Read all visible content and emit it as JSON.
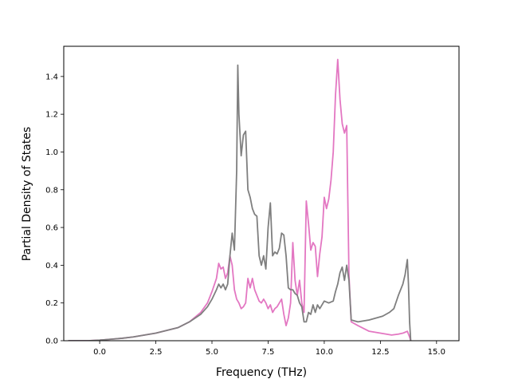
{
  "chart_data": {
    "type": "line",
    "title": "",
    "xlabel": "Frequency (THz)",
    "ylabel": "Partial Density of States",
    "xlim": [
      -1.6,
      16.0
    ],
    "ylim": [
      0.0,
      1.56
    ],
    "xticks": [
      0.0,
      2.5,
      5.0,
      7.5,
      10.0,
      12.5,
      15.0
    ],
    "xtick_labels": [
      "0.0",
      "2.5",
      "5.0",
      "7.5",
      "10.0",
      "12.5",
      "15.0"
    ],
    "yticks": [
      0.0,
      0.2,
      0.4,
      0.6,
      0.8,
      1.0,
      1.2,
      1.4
    ],
    "ytick_labels": [
      "0.0",
      "0.2",
      "0.4",
      "0.6",
      "0.8",
      "1.0",
      "1.2",
      "1.4"
    ],
    "grid": false,
    "legend": "none",
    "series": [
      {
        "color": "#e377c2",
        "x": [
          -1.4,
          -0.5,
          0.0,
          0.5,
          1.0,
          1.5,
          2.0,
          2.5,
          3.0,
          3.5,
          4.0,
          4.5,
          4.8,
          5.0,
          5.2,
          5.3,
          5.4,
          5.5,
          5.6,
          5.7,
          5.8,
          5.9,
          6.0,
          6.1,
          6.2,
          6.3,
          6.4,
          6.5,
          6.6,
          6.7,
          6.8,
          6.9,
          7.0,
          7.1,
          7.2,
          7.3,
          7.4,
          7.5,
          7.6,
          7.7,
          7.8,
          7.9,
          8.0,
          8.1,
          8.2,
          8.3,
          8.4,
          8.5,
          8.6,
          8.7,
          8.8,
          8.9,
          9.0,
          9.1,
          9.2,
          9.3,
          9.4,
          9.5,
          9.6,
          9.7,
          9.8,
          9.9,
          10.0,
          10.1,
          10.2,
          10.3,
          10.4,
          10.5,
          10.6,
          10.7,
          10.8,
          10.9,
          11.0,
          11.1,
          11.2,
          11.5,
          12.0,
          12.5,
          13.0,
          13.3,
          13.5,
          13.7,
          13.8,
          13.85
        ],
        "y": [
          0.0,
          0.0,
          0.003,
          0.008,
          0.013,
          0.02,
          0.03,
          0.04,
          0.055,
          0.07,
          0.1,
          0.15,
          0.2,
          0.26,
          0.33,
          0.41,
          0.38,
          0.39,
          0.33,
          0.36,
          0.45,
          0.4,
          0.27,
          0.22,
          0.2,
          0.17,
          0.18,
          0.2,
          0.33,
          0.28,
          0.33,
          0.27,
          0.24,
          0.21,
          0.2,
          0.22,
          0.2,
          0.17,
          0.19,
          0.15,
          0.17,
          0.18,
          0.2,
          0.22,
          0.14,
          0.08,
          0.12,
          0.2,
          0.52,
          0.32,
          0.24,
          0.32,
          0.2,
          0.15,
          0.74,
          0.62,
          0.48,
          0.52,
          0.5,
          0.34,
          0.46,
          0.55,
          0.76,
          0.7,
          0.75,
          0.85,
          1.0,
          1.3,
          1.49,
          1.28,
          1.15,
          1.1,
          1.14,
          0.35,
          0.1,
          0.08,
          0.05,
          0.04,
          0.03,
          0.035,
          0.04,
          0.05,
          0.02,
          0.0
        ]
      },
      {
        "color": "#7f7f7f",
        "x": [
          -1.4,
          -0.5,
          0.0,
          0.5,
          1.0,
          1.5,
          2.0,
          2.5,
          3.0,
          3.5,
          4.0,
          4.5,
          4.8,
          5.0,
          5.2,
          5.3,
          5.4,
          5.5,
          5.6,
          5.7,
          5.8,
          5.9,
          6.0,
          6.1,
          6.15,
          6.2,
          6.3,
          6.4,
          6.5,
          6.6,
          6.7,
          6.8,
          6.9,
          7.0,
          7.1,
          7.2,
          7.3,
          7.4,
          7.5,
          7.6,
          7.7,
          7.8,
          7.9,
          8.0,
          8.1,
          8.2,
          8.3,
          8.4,
          8.5,
          8.6,
          8.7,
          8.8,
          8.9,
          9.0,
          9.1,
          9.2,
          9.3,
          9.4,
          9.5,
          9.6,
          9.7,
          9.8,
          9.9,
          10.0,
          10.2,
          10.4,
          10.5,
          10.6,
          10.7,
          10.8,
          10.9,
          11.0,
          11.1,
          11.2,
          11.5,
          12.0,
          12.3,
          12.6,
          12.9,
          13.1,
          13.3,
          13.5,
          13.6,
          13.7,
          13.75,
          13.8,
          13.85
        ],
        "y": [
          0.0,
          0.0,
          0.003,
          0.008,
          0.013,
          0.02,
          0.03,
          0.04,
          0.055,
          0.07,
          0.1,
          0.14,
          0.18,
          0.22,
          0.27,
          0.3,
          0.28,
          0.3,
          0.27,
          0.3,
          0.45,
          0.57,
          0.48,
          0.9,
          1.46,
          1.2,
          0.98,
          1.09,
          1.11,
          0.8,
          0.76,
          0.7,
          0.67,
          0.66,
          0.45,
          0.4,
          0.45,
          0.38,
          0.6,
          0.73,
          0.45,
          0.47,
          0.46,
          0.49,
          0.57,
          0.56,
          0.45,
          0.28,
          0.27,
          0.27,
          0.25,
          0.24,
          0.2,
          0.18,
          0.1,
          0.1,
          0.15,
          0.14,
          0.19,
          0.15,
          0.19,
          0.17,
          0.19,
          0.21,
          0.2,
          0.21,
          0.26,
          0.3,
          0.36,
          0.39,
          0.32,
          0.4,
          0.32,
          0.11,
          0.1,
          0.11,
          0.12,
          0.13,
          0.15,
          0.17,
          0.24,
          0.3,
          0.35,
          0.43,
          0.3,
          0.1,
          0.0
        ]
      }
    ]
  }
}
